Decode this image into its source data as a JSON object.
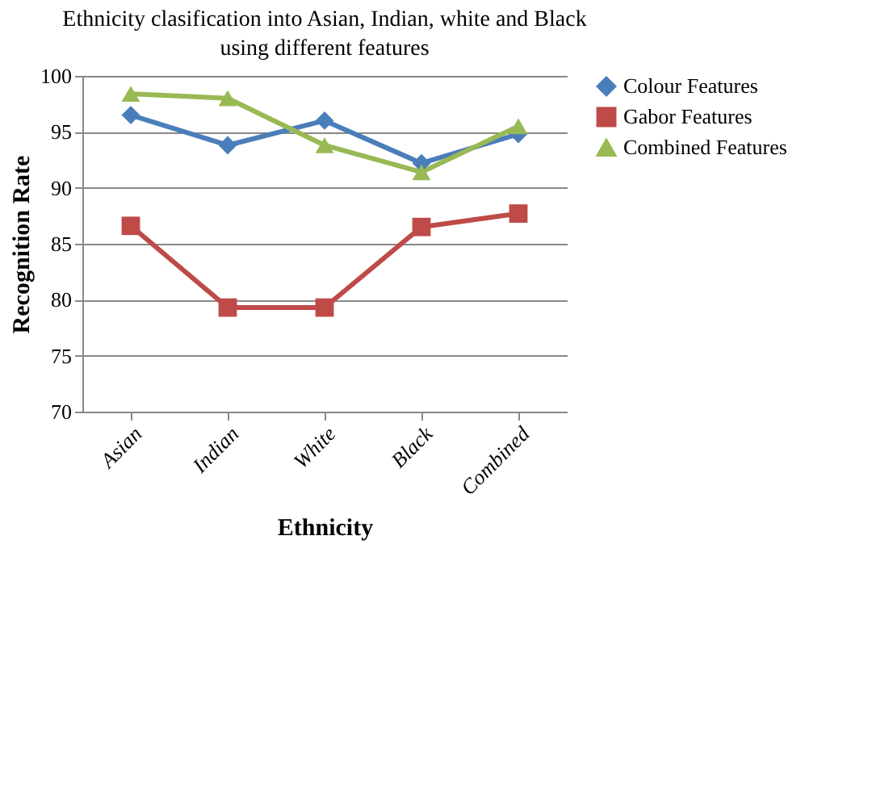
{
  "chart_data": {
    "type": "line",
    "title": "Ethnicity clasification into Asian, Indian, white and Black using different features",
    "xlabel": "Ethnicity",
    "ylabel": "Recognition Rate",
    "categories": [
      "Asian",
      "Indian",
      "White",
      "Black",
      "Combined"
    ],
    "series": [
      {
        "name": "Colour Features",
        "color": "#4a7ebb",
        "marker": "diamond",
        "values": [
          96.5,
          93.8,
          96,
          92.2,
          94.8
        ]
      },
      {
        "name": "Gabor Features",
        "color": "#be4b48",
        "marker": "square",
        "values": [
          86.6,
          79.3,
          79.3,
          86.5,
          87.7
        ]
      },
      {
        "name": "Combined Features",
        "color": "#98b954",
        "marker": "triangle",
        "values": [
          98.4,
          98,
          93.8,
          91.4,
          95.5
        ]
      }
    ],
    "ylim": [
      70,
      100
    ],
    "yticks": [
      70,
      75,
      80,
      85,
      90,
      95,
      100
    ],
    "grid": "y",
    "legend": "right"
  }
}
